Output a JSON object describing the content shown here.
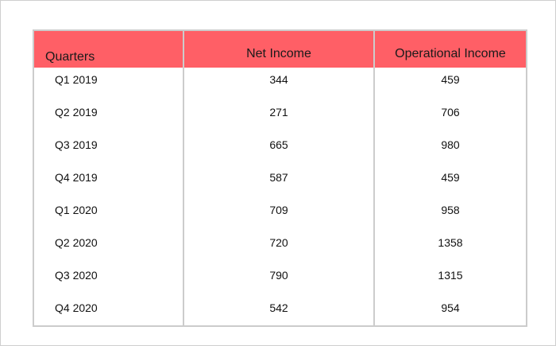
{
  "chart_data": {
    "type": "table",
    "columns": [
      "Quarters",
      "Net Income",
      "Operational Income"
    ],
    "rows": [
      [
        "Q1 2019",
        "344",
        "459"
      ],
      [
        "Q2 2019",
        "271",
        "706"
      ],
      [
        "Q3 2019",
        "665",
        "980"
      ],
      [
        "Q4 2019",
        "587",
        "459"
      ],
      [
        "Q1 2020",
        "709",
        "958"
      ],
      [
        "Q2 2020",
        "720",
        "1358"
      ],
      [
        "Q3 2020",
        "790",
        "1315"
      ],
      [
        "Q4 2020",
        "542",
        "954"
      ]
    ],
    "header_color": "#ff5f66",
    "border_color": "#cccccc"
  }
}
